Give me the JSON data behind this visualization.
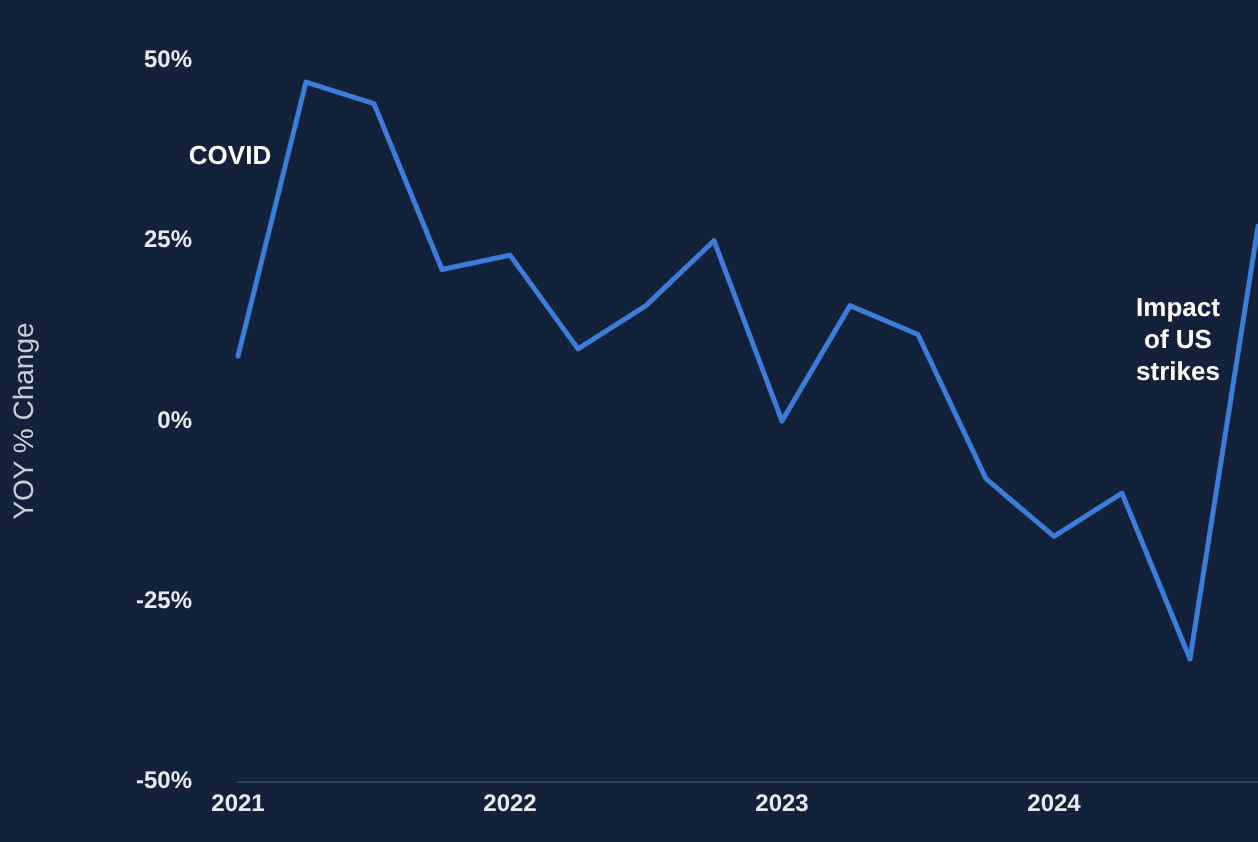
{
  "chart_data": {
    "type": "line",
    "ylabel": "YOY % Change",
    "x": [
      "2021-01",
      "2021-04",
      "2021-07",
      "2021-10",
      "2022-01",
      "2022-04",
      "2022-07",
      "2022-10",
      "2023-01",
      "2023-04",
      "2023-07",
      "2023-10",
      "2024-01",
      "2024-04",
      "2024-07",
      "2024-10"
    ],
    "series": [
      {
        "color": "#3b7dd8",
        "values": [
          9,
          47,
          44,
          21,
          23,
          10,
          16,
          25,
          0,
          16,
          12,
          -8,
          -16,
          -10,
          -33,
          27
        ]
      }
    ],
    "xlim": [
      "2021",
      "2024-10"
    ],
    "xticks": [
      "2021",
      "2022",
      "2023",
      "2024"
    ],
    "ylim": [
      -50,
      50
    ],
    "yticks": [
      {
        "value": -50,
        "label": "-50%"
      },
      {
        "value": -25,
        "label": "-25%"
      },
      {
        "value": 0,
        "label": "0%"
      },
      {
        "value": 25,
        "label": "25%"
      },
      {
        "value": 50,
        "label": "50%"
      }
    ],
    "grid": false,
    "legend": false,
    "marker": "none",
    "line_style": "solid",
    "annotations": [
      "COVID",
      "Impact of US strikes"
    ]
  }
}
